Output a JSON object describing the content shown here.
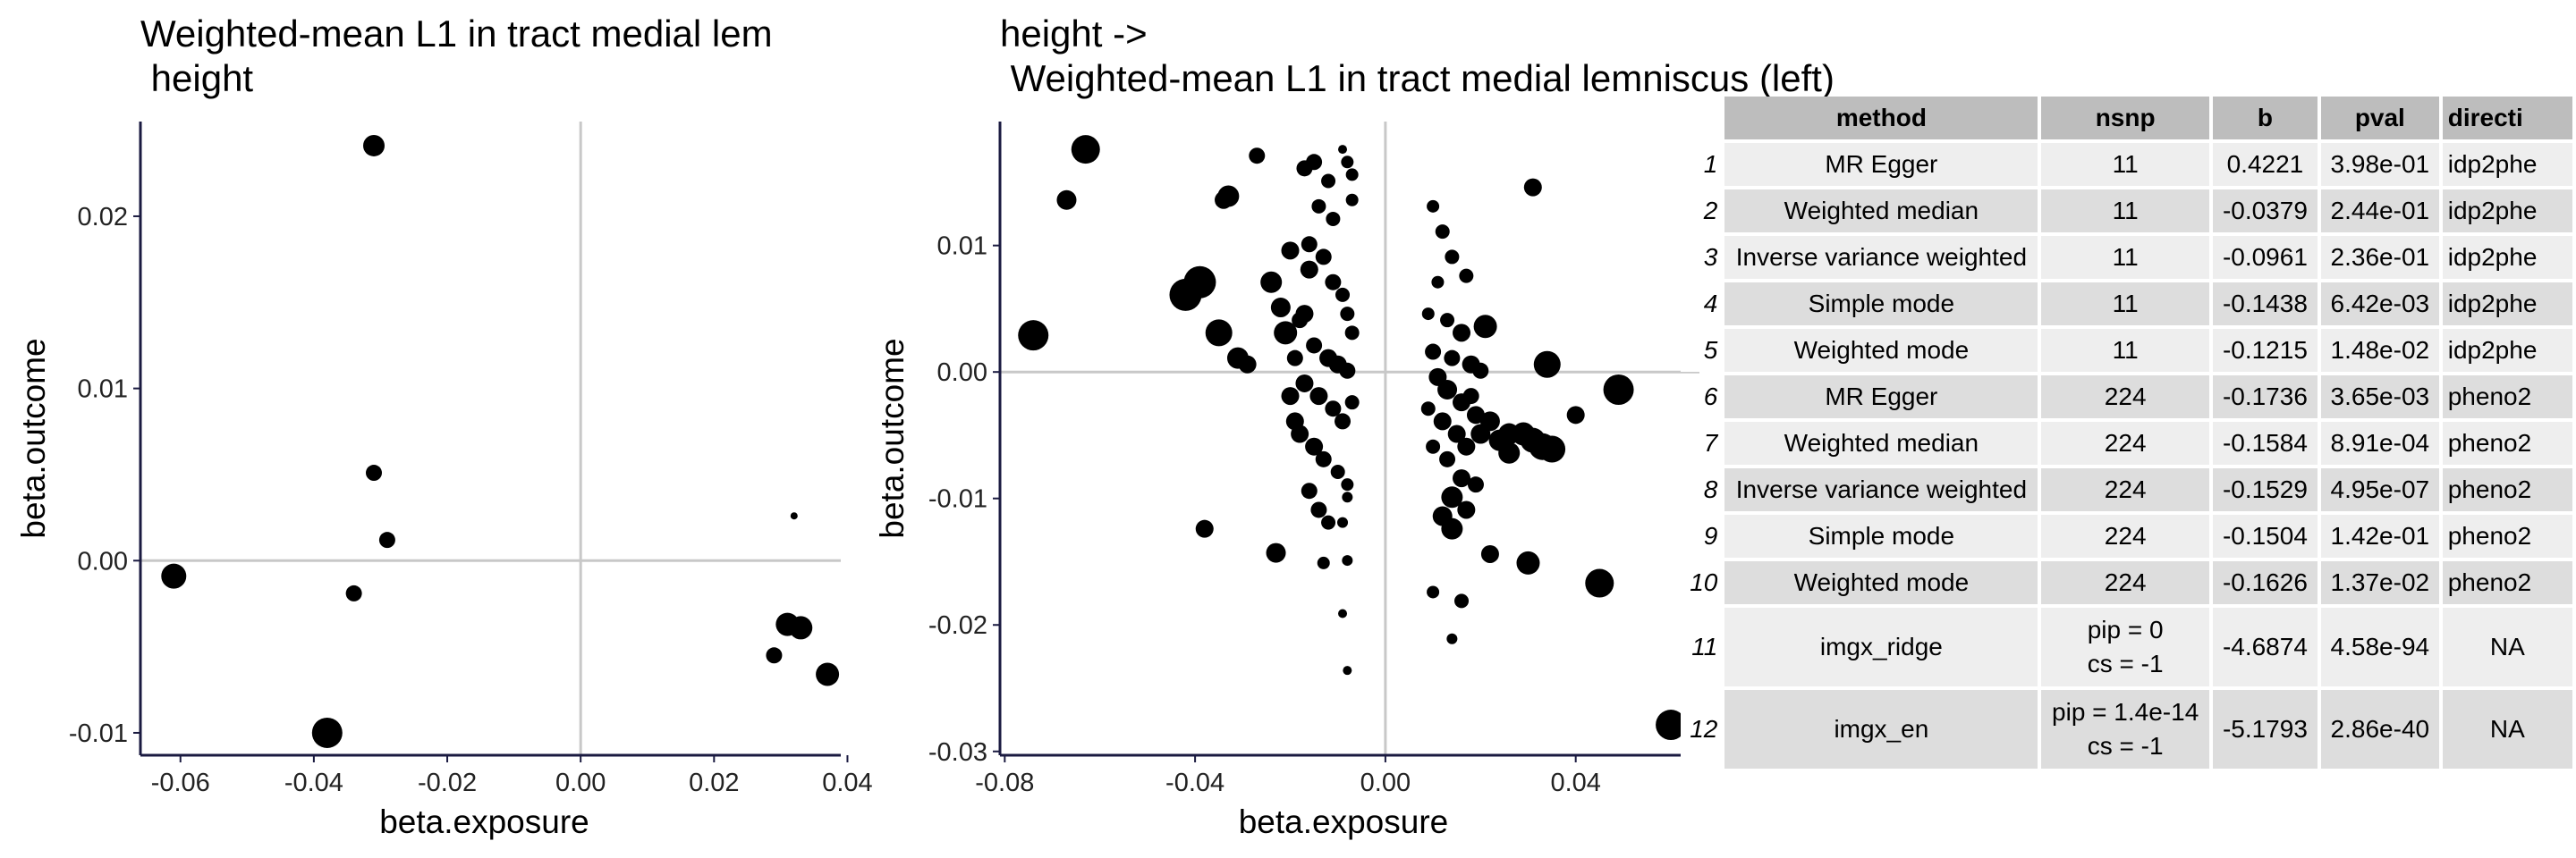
{
  "chart_data": [
    {
      "type": "scatter",
      "title_line1": "Weighted-mean L1 in tract medial lem",
      "title_line2": " height",
      "xlabel": "beta.exposure",
      "ylabel": "beta.outcome",
      "xlim": [
        -0.066,
        0.039
      ],
      "ylim": [
        -0.0113,
        0.0255
      ],
      "xticks": [
        -0.06,
        -0.04,
        -0.02,
        0.0,
        0.02,
        0.04
      ],
      "xtick_labels": [
        "-0.06",
        "-0.04",
        "-0.02",
        "0.00",
        "0.02",
        "0.04"
      ],
      "yticks": [
        -0.01,
        0.0,
        0.01,
        0.02
      ],
      "ytick_labels": [
        "-0.01",
        "0.00",
        "0.01",
        "0.02"
      ],
      "zero_lines": true,
      "points": [
        {
          "x": -0.031,
          "y": 0.0241,
          "s": 12
        },
        {
          "x": -0.061,
          "y": -0.0009,
          "s": 14
        },
        {
          "x": -0.038,
          "y": -0.01,
          "s": 17
        },
        {
          "x": -0.031,
          "y": 0.0051,
          "s": 9
        },
        {
          "x": -0.029,
          "y": 0.0012,
          "s": 9
        },
        {
          "x": -0.034,
          "y": -0.0019,
          "s": 9
        },
        {
          "x": 0.032,
          "y": 0.0026,
          "s": 4
        },
        {
          "x": 0.031,
          "y": -0.0037,
          "s": 13
        },
        {
          "x": 0.033,
          "y": -0.0039,
          "s": 13
        },
        {
          "x": 0.029,
          "y": -0.0055,
          "s": 9
        },
        {
          "x": 0.037,
          "y": -0.0066,
          "s": 13
        }
      ]
    },
    {
      "type": "scatter",
      "title_line1": "height ->",
      "title_line2": " Weighted-mean L1 in tract medial lemniscus (left)",
      "xlabel": "beta.exposure",
      "ylabel": "beta.outcome",
      "xlim": [
        -0.081,
        0.066
      ],
      "ylim": [
        -0.0303,
        0.0198
      ],
      "xticks": [
        -0.08,
        -0.04,
        0.0,
        0.04
      ],
      "xtick_labels": [
        "-0.08",
        "-0.04",
        "0.00",
        "0.04"
      ],
      "yticks": [
        -0.03,
        -0.02,
        -0.01,
        0.0,
        0.01
      ],
      "ytick_labels": [
        "-0.03",
        "-0.02",
        "-0.01",
        "0.00",
        "0.01"
      ],
      "zero_lines": true,
      "points": [
        {
          "x": -0.063,
          "y": 0.0176,
          "s": 16
        },
        {
          "x": -0.067,
          "y": 0.0136,
          "s": 11
        },
        {
          "x": -0.074,
          "y": 0.0029,
          "s": 17
        },
        {
          "x": -0.042,
          "y": 0.0061,
          "s": 18
        },
        {
          "x": -0.039,
          "y": 0.0071,
          "s": 18
        },
        {
          "x": -0.035,
          "y": 0.0031,
          "s": 15
        },
        {
          "x": -0.031,
          "y": 0.0011,
          "s": 12
        },
        {
          "x": -0.029,
          "y": 0.0006,
          "s": 10
        },
        {
          "x": -0.033,
          "y": 0.0139,
          "s": 12
        },
        {
          "x": -0.034,
          "y": 0.0136,
          "s": 10
        },
        {
          "x": -0.027,
          "y": 0.0171,
          "s": 9
        },
        {
          "x": -0.024,
          "y": 0.0071,
          "s": 12
        },
        {
          "x": -0.022,
          "y": 0.0051,
          "s": 11
        },
        {
          "x": -0.02,
          "y": 0.0096,
          "s": 10
        },
        {
          "x": -0.021,
          "y": 0.0031,
          "s": 13
        },
        {
          "x": -0.019,
          "y": 0.0011,
          "s": 9
        },
        {
          "x": -0.018,
          "y": 0.0041,
          "s": 9
        },
        {
          "x": -0.017,
          "y": 0.0161,
          "s": 9
        },
        {
          "x": -0.015,
          "y": 0.0166,
          "s": 9
        },
        {
          "x": -0.014,
          "y": 0.0131,
          "s": 8
        },
        {
          "x": -0.012,
          "y": 0.0151,
          "s": 8
        },
        {
          "x": -0.011,
          "y": 0.0121,
          "s": 8
        },
        {
          "x": -0.009,
          "y": 0.0176,
          "s": 5
        },
        {
          "x": -0.008,
          "y": 0.0166,
          "s": 7
        },
        {
          "x": -0.007,
          "y": 0.0156,
          "s": 7
        },
        {
          "x": -0.007,
          "y": 0.0136,
          "s": 7
        },
        {
          "x": -0.016,
          "y": 0.0081,
          "s": 10
        },
        {
          "x": -0.013,
          "y": 0.0091,
          "s": 9
        },
        {
          "x": -0.011,
          "y": 0.0071,
          "s": 9
        },
        {
          "x": -0.009,
          "y": 0.0061,
          "s": 8
        },
        {
          "x": -0.008,
          "y": 0.0046,
          "s": 8
        },
        {
          "x": -0.007,
          "y": 0.0031,
          "s": 8
        },
        {
          "x": -0.015,
          "y": 0.0021,
          "s": 9
        },
        {
          "x": -0.012,
          "y": 0.0011,
          "s": 10
        },
        {
          "x": -0.01,
          "y": 0.0006,
          "s": 10
        },
        {
          "x": -0.008,
          "y": 0.0001,
          "s": 9
        },
        {
          "x": -0.017,
          "y": -0.0009,
          "s": 10
        },
        {
          "x": -0.014,
          "y": -0.0019,
          "s": 10
        },
        {
          "x": -0.011,
          "y": -0.0029,
          "s": 9
        },
        {
          "x": -0.009,
          "y": -0.0039,
          "s": 9
        },
        {
          "x": -0.007,
          "y": -0.0024,
          "s": 8
        },
        {
          "x": -0.018,
          "y": -0.0049,
          "s": 10
        },
        {
          "x": -0.015,
          "y": -0.0059,
          "s": 10
        },
        {
          "x": -0.013,
          "y": -0.0069,
          "s": 9
        },
        {
          "x": -0.01,
          "y": -0.0079,
          "s": 8
        },
        {
          "x": -0.008,
          "y": -0.0089,
          "s": 7
        },
        {
          "x": -0.016,
          "y": -0.0094,
          "s": 9
        },
        {
          "x": -0.014,
          "y": -0.0109,
          "s": 9
        },
        {
          "x": -0.012,
          "y": -0.0119,
          "s": 8
        },
        {
          "x": -0.008,
          "y": -0.0099,
          "s": 6
        },
        {
          "x": -0.009,
          "y": -0.0119,
          "s": 6
        },
        {
          "x": -0.013,
          "y": -0.0151,
          "s": 7
        },
        {
          "x": -0.008,
          "y": -0.0149,
          "s": 6
        },
        {
          "x": -0.009,
          "y": -0.0191,
          "s": 5
        },
        {
          "x": -0.008,
          "y": -0.0236,
          "s": 5
        },
        {
          "x": -0.023,
          "y": -0.0143,
          "s": 11
        },
        {
          "x": -0.038,
          "y": -0.0124,
          "s": 10
        },
        {
          "x": -0.02,
          "y": -0.0019,
          "s": 10
        },
        {
          "x": -0.019,
          "y": -0.0039,
          "s": 10
        },
        {
          "x": -0.017,
          "y": 0.0046,
          "s": 10
        },
        {
          "x": -0.016,
          "y": 0.0101,
          "s": 9
        },
        {
          "x": 0.01,
          "y": 0.0131,
          "s": 7
        },
        {
          "x": 0.012,
          "y": 0.0111,
          "s": 8
        },
        {
          "x": 0.014,
          "y": 0.0091,
          "s": 8
        },
        {
          "x": 0.017,
          "y": 0.0076,
          "s": 8
        },
        {
          "x": 0.011,
          "y": 0.0071,
          "s": 7
        },
        {
          "x": 0.009,
          "y": 0.0046,
          "s": 7
        },
        {
          "x": 0.013,
          "y": 0.0041,
          "s": 8
        },
        {
          "x": 0.016,
          "y": 0.0031,
          "s": 10
        },
        {
          "x": 0.021,
          "y": 0.0036,
          "s": 13
        },
        {
          "x": 0.01,
          "y": 0.0016,
          "s": 9
        },
        {
          "x": 0.014,
          "y": 0.0011,
          "s": 9
        },
        {
          "x": 0.018,
          "y": 0.0006,
          "s": 10
        },
        {
          "x": 0.011,
          "y": -0.0004,
          "s": 10
        },
        {
          "x": 0.013,
          "y": -0.0014,
          "s": 11
        },
        {
          "x": 0.016,
          "y": -0.0024,
          "s": 10
        },
        {
          "x": 0.019,
          "y": -0.0034,
          "s": 10
        },
        {
          "x": 0.012,
          "y": -0.0039,
          "s": 10
        },
        {
          "x": 0.015,
          "y": -0.0049,
          "s": 10
        },
        {
          "x": 0.017,
          "y": -0.0059,
          "s": 10
        },
        {
          "x": 0.013,
          "y": -0.0069,
          "s": 9
        },
        {
          "x": 0.016,
          "y": -0.0084,
          "s": 10
        },
        {
          "x": 0.014,
          "y": -0.0099,
          "s": 12
        },
        {
          "x": 0.012,
          "y": -0.0114,
          "s": 11
        },
        {
          "x": 0.014,
          "y": -0.0124,
          "s": 12
        },
        {
          "x": 0.017,
          "y": -0.0109,
          "s": 10
        },
        {
          "x": 0.019,
          "y": -0.0089,
          "s": 9
        },
        {
          "x": 0.01,
          "y": -0.0174,
          "s": 7
        },
        {
          "x": 0.014,
          "y": -0.0211,
          "s": 6
        },
        {
          "x": 0.016,
          "y": -0.0181,
          "s": 8
        },
        {
          "x": 0.022,
          "y": -0.0144,
          "s": 10
        },
        {
          "x": 0.02,
          "y": -0.0049,
          "s": 11
        },
        {
          "x": 0.022,
          "y": -0.0039,
          "s": 11
        },
        {
          "x": 0.024,
          "y": -0.0054,
          "s": 12
        },
        {
          "x": 0.026,
          "y": -0.0064,
          "s": 12
        },
        {
          "x": 0.026,
          "y": -0.0049,
          "s": 12
        },
        {
          "x": 0.029,
          "y": -0.0049,
          "s": 13
        },
        {
          "x": 0.031,
          "y": -0.0054,
          "s": 14
        },
        {
          "x": 0.033,
          "y": -0.0059,
          "s": 15
        },
        {
          "x": 0.035,
          "y": -0.0061,
          "s": 15
        },
        {
          "x": 0.034,
          "y": 0.0006,
          "s": 15
        },
        {
          "x": 0.031,
          "y": 0.0146,
          "s": 10
        },
        {
          "x": 0.03,
          "y": -0.0151,
          "s": 13
        },
        {
          "x": 0.04,
          "y": -0.0034,
          "s": 10
        },
        {
          "x": 0.045,
          "y": -0.0167,
          "s": 16
        },
        {
          "x": 0.049,
          "y": -0.0014,
          "s": 17
        },
        {
          "x": 0.06,
          "y": -0.0279,
          "s": 17
        },
        {
          "x": 0.009,
          "y": -0.0029,
          "s": 8
        },
        {
          "x": 0.01,
          "y": -0.0059,
          "s": 8
        },
        {
          "x": 0.018,
          "y": -0.0019,
          "s": 9
        },
        {
          "x": 0.02,
          "y": 0.0001,
          "s": 9
        }
      ]
    }
  ],
  "table": {
    "headers": [
      "method",
      "nsnp",
      "b",
      "pval",
      "directi"
    ],
    "rows": [
      {
        "n": "1",
        "method": "MR Egger",
        "nsnp": "11",
        "b": "0.4221",
        "pval": "3.98e-01",
        "dir": "idp2phe"
      },
      {
        "n": "2",
        "method": "Weighted median",
        "nsnp": "11",
        "b": "-0.0379",
        "pval": "2.44e-01",
        "dir": "idp2phe"
      },
      {
        "n": "3",
        "method": "Inverse variance weighted",
        "nsnp": "11",
        "b": "-0.0961",
        "pval": "2.36e-01",
        "dir": "idp2phe"
      },
      {
        "n": "4",
        "method": "Simple mode",
        "nsnp": "11",
        "b": "-0.1438",
        "pval": "6.42e-03",
        "dir": "idp2phe"
      },
      {
        "n": "5",
        "method": "Weighted mode",
        "nsnp": "11",
        "b": "-0.1215",
        "pval": "1.48e-02",
        "dir": "idp2phe"
      },
      {
        "n": "6",
        "method": "MR Egger",
        "nsnp": "224",
        "b": "-0.1736",
        "pval": "3.65e-03",
        "dir": "pheno2"
      },
      {
        "n": "7",
        "method": "Weighted median",
        "nsnp": "224",
        "b": "-0.1584",
        "pval": "8.91e-04",
        "dir": "pheno2"
      },
      {
        "n": "8",
        "method": "Inverse variance weighted",
        "nsnp": "224",
        "b": "-0.1529",
        "pval": "4.95e-07",
        "dir": "pheno2"
      },
      {
        "n": "9",
        "method": "Simple mode",
        "nsnp": "224",
        "b": "-0.1504",
        "pval": "1.42e-01",
        "dir": "pheno2"
      },
      {
        "n": "10",
        "method": "Weighted mode",
        "nsnp": "224",
        "b": "-0.1626",
        "pval": "1.37e-02",
        "dir": "pheno2"
      },
      {
        "n": "11",
        "method": "imgx_ridge",
        "nsnp": "pip = 0",
        "nsnp2": "cs = -1",
        "b": "-4.6874",
        "pval": "4.58e-94",
        "dir": "NA"
      },
      {
        "n": "12",
        "method": "imgx_en",
        "nsnp": "pip = 1.4e-14",
        "nsnp2": "cs = -1",
        "b": "-5.1793",
        "pval": "2.86e-40",
        "dir": "NA"
      }
    ]
  }
}
